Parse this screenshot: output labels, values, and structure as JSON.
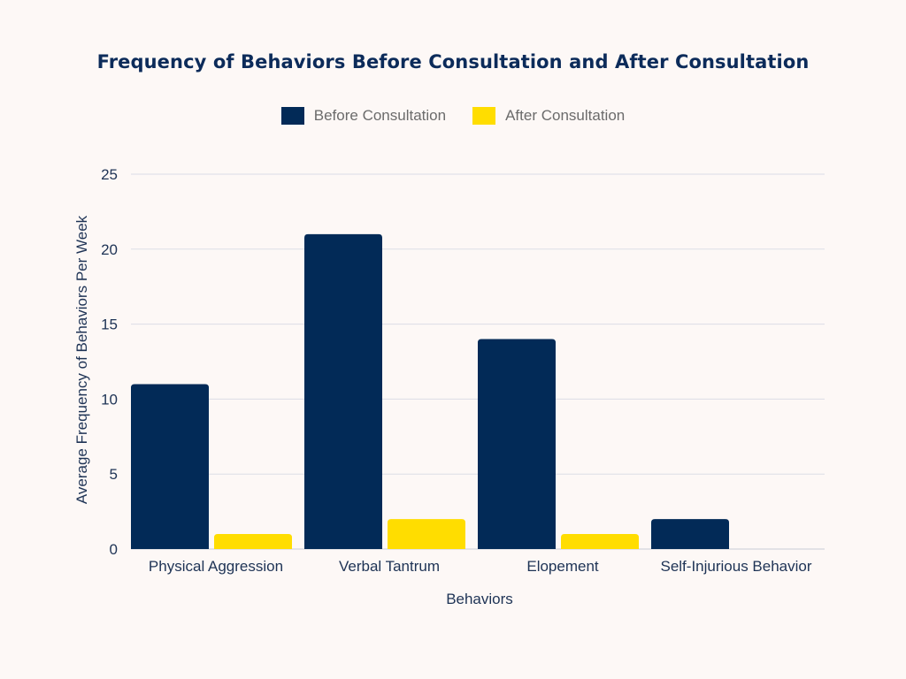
{
  "chart_data": {
    "type": "bar",
    "title": "Frequency of Behaviors Before Consultation and After Consultation",
    "xlabel": "Behaviors",
    "ylabel": "Average Frequency of Behaviors Per Week",
    "categories": [
      "Physical Aggression",
      "Verbal Tantrum",
      "Elopement",
      "Self-Injurious Behavior"
    ],
    "series": [
      {
        "name": "Before Consultation",
        "color": "#022a57",
        "values": [
          11,
          21,
          14,
          2
        ]
      },
      {
        "name": "After Consultation",
        "color": "#ffdd00",
        "values": [
          1,
          2,
          1,
          0
        ]
      }
    ],
    "ylim": [
      0,
      25
    ],
    "yticks": [
      0,
      5,
      10,
      15,
      20,
      25
    ],
    "grid": true,
    "legend_position": "top-center"
  }
}
